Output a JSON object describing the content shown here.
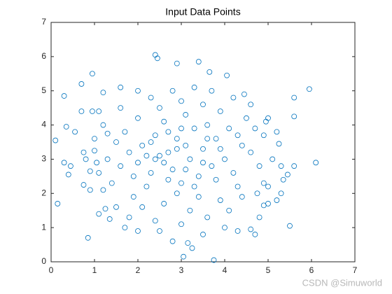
{
  "chart_data": {
    "type": "scatter",
    "title": "Input Data Points",
    "watermark": "CSDN @Simuworld",
    "color": "#0072bd",
    "marker": "circle",
    "box": true,
    "grid": false,
    "xlim": [
      0,
      7
    ],
    "ylim": [
      0,
      7
    ],
    "xticks": [
      0,
      1,
      2,
      3,
      4,
      5,
      6,
      7
    ],
    "yticks": [
      0,
      1,
      2,
      3,
      4,
      5,
      6,
      7
    ],
    "x": [
      0.1,
      0.15,
      0.3,
      0.35,
      0.3,
      0.45,
      0.4,
      0.55,
      0.7,
      0.7,
      0.75,
      0.75,
      0.85,
      0.9,
      0.9,
      0.95,
      0.95,
      1.0,
      1.05,
      1.1,
      1.2,
      1.1,
      1.25,
      1.3,
      1.35,
      5.95,
      5.6,
      5.6,
      6.1,
      5.6,
      5.45,
      5.5,
      5.25,
      4.95,
      4.6,
      4.7,
      3.75,
      3.25,
      3.05,
      3.15,
      2.4,
      2.45,
      3.4,
      2.9,
      3.65,
      4.05,
      4.45,
      5.3,
      5.35,
      5.0,
      4.9,
      4.75,
      2.1,
      2.5,
      2.8,
      3.2,
      3.5,
      2.7,
      3.0,
      2.3,
      3.8,
      3.4,
      2.0,
      2.6,
      3.1,
      3.6,
      2.9,
      2.4,
      3.3,
      1.8,
      4.0,
      3.7,
      2.2,
      2.9,
      3.4,
      1.9,
      4.2,
      4.4,
      4.1,
      1.7,
      1.6,
      2.5,
      3.0,
      3.5,
      2.0,
      1.5,
      4.6,
      4.3,
      3.9,
      2.6,
      2.1,
      3.2,
      1.4,
      1.9,
      4.8,
      4.5,
      3.9,
      2.3,
      2.8,
      3.3,
      1.6,
      1.3,
      2.7,
      3.1,
      2.4,
      3.6,
      2.9,
      2.2,
      3.3,
      2.6,
      3.0,
      3.8,
      1.2,
      1.5,
      1.8,
      2.4,
      3.0,
      3.6,
      4.1,
      4.4,
      4.9,
      5.1,
      4.9,
      4.6,
      4.2,
      3.7,
      2.0,
      1.6,
      1.2,
      1.0,
      1.1,
      0.8,
      2.5,
      2.8,
      3.5,
      2.0,
      1.7,
      4.0,
      4.3,
      4.8,
      5.2,
      5.0,
      5.3,
      5.2,
      5.0,
      4.7,
      4.3,
      3.9,
      3.5,
      3.1,
      2.7,
      2.3
    ],
    "values": [
      3.55,
      1.7,
      4.85,
      3.95,
      2.9,
      2.8,
      2.55,
      3.8,
      5.2,
      4.4,
      2.25,
      3.2,
      0.7,
      2.1,
      2.65,
      4.4,
      5.5,
      3.25,
      2.9,
      4.4,
      4.95,
      1.4,
      1.55,
      3.75,
      1.25,
      5.05,
      4.8,
      4.25,
      2.9,
      2.8,
      2.55,
      1.05,
      3.45,
      4.1,
      0.95,
      0.8,
      0.05,
      0.4,
      0.15,
      0.55,
      6.05,
      5.95,
      5.85,
      5.8,
      5.55,
      5.45,
      4.9,
      2.0,
      2.4,
      1.7,
      1.65,
      2.0,
      3.4,
      3.1,
      2.7,
      3.0,
      3.3,
      3.8,
      2.3,
      2.6,
      3.6,
      2.5,
      2.9,
      4.1,
      4.3,
      4.0,
      3.3,
      3.7,
      3.9,
      3.2,
      3.0,
      2.8,
      2.2,
      2.0,
      1.9,
      2.5,
      2.6,
      3.4,
      3.9,
      3.8,
      2.8,
      4.5,
      4.7,
      4.6,
      4.2,
      3.5,
      3.2,
      2.2,
      1.8,
      1.7,
      1.6,
      1.5,
      2.3,
      1.9,
      2.8,
      4.2,
      4.4,
      4.8,
      5.0,
      5.1,
      4.5,
      3.0,
      2.4,
      2.7,
      3.0,
      3.6,
      3.6,
      3.1,
      2.2,
      2.9,
      3.9,
      2.4,
      2.1,
      1.6,
      1.3,
      1.2,
      1.1,
      1.3,
      1.5,
      1.9,
      2.3,
      3.0,
      3.7,
      4.6,
      4.8,
      5.0,
      5.0,
      5.1,
      4.0,
      3.6,
      2.6,
      3.0,
      0.9,
      0.6,
      0.8,
      0.9,
      1.0,
      1.0,
      0.9,
      1.3,
      1.8,
      2.2,
      2.8,
      3.8,
      4.2,
      3.9,
      3.7,
      3.3,
      2.9,
      3.4,
      3.2,
      3.5
    ]
  }
}
